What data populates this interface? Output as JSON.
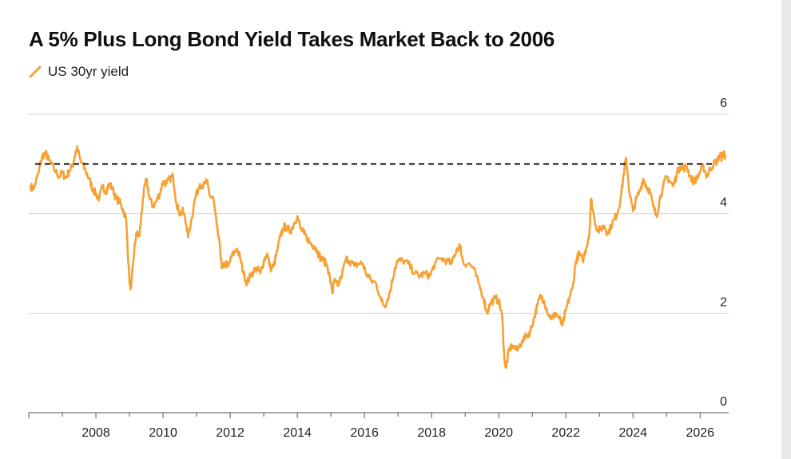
{
  "chart_data": {
    "type": "line",
    "title": "A 5% Plus Long Bond Yield Takes Market Back to 2006",
    "xlabel": "",
    "ylabel": "",
    "xlim": [
      2006.0,
      2026.85
    ],
    "ylim": [
      0,
      6
    ],
    "x_ticks": [
      "2008",
      "2010",
      "2012",
      "2014",
      "2016",
      "2018",
      "2020",
      "2022",
      "2024",
      "2026"
    ],
    "y_ticks": [
      "0",
      "2",
      "4",
      "6"
    ],
    "grid": true,
    "legend_position": "top-left",
    "reference_line": {
      "y": 5.0,
      "style": "dashed",
      "color": "#111111"
    },
    "series": [
      {
        "name": "US 30yr yield",
        "color": "#f7a133",
        "points": [
          [
            2006.05,
            4.55
          ],
          [
            2006.15,
            4.5
          ],
          [
            2006.3,
            4.85
          ],
          [
            2006.4,
            5.15
          ],
          [
            2006.5,
            5.22
          ],
          [
            2006.6,
            5.08
          ],
          [
            2006.75,
            4.9
          ],
          [
            2006.9,
            4.75
          ],
          [
            2007.0,
            4.82
          ],
          [
            2007.1,
            4.72
          ],
          [
            2007.2,
            4.85
          ],
          [
            2007.3,
            4.95
          ],
          [
            2007.4,
            5.25
          ],
          [
            2007.45,
            5.3
          ],
          [
            2007.55,
            5.05
          ],
          [
            2007.7,
            4.85
          ],
          [
            2007.8,
            4.7
          ],
          [
            2007.9,
            4.5
          ],
          [
            2008.0,
            4.4
          ],
          [
            2008.1,
            4.3
          ],
          [
            2008.2,
            4.55
          ],
          [
            2008.3,
            4.45
          ],
          [
            2008.4,
            4.6
          ],
          [
            2008.5,
            4.5
          ],
          [
            2008.6,
            4.3
          ],
          [
            2008.7,
            4.25
          ],
          [
            2008.8,
            4.1
          ],
          [
            2008.9,
            3.9
          ],
          [
            2009.0,
            2.65
          ],
          [
            2009.05,
            2.5
          ],
          [
            2009.12,
            3.1
          ],
          [
            2009.2,
            3.6
          ],
          [
            2009.3,
            3.55
          ],
          [
            2009.4,
            4.3
          ],
          [
            2009.5,
            4.7
          ],
          [
            2009.6,
            4.3
          ],
          [
            2009.7,
            4.15
          ],
          [
            2009.8,
            4.25
          ],
          [
            2009.9,
            4.4
          ],
          [
            2010.0,
            4.65
          ],
          [
            2010.1,
            4.6
          ],
          [
            2010.2,
            4.7
          ],
          [
            2010.3,
            4.75
          ],
          [
            2010.4,
            4.2
          ],
          [
            2010.5,
            4.0
          ],
          [
            2010.6,
            4.05
          ],
          [
            2010.7,
            3.75
          ],
          [
            2010.75,
            3.55
          ],
          [
            2010.85,
            3.9
          ],
          [
            2010.95,
            4.3
          ],
          [
            2011.1,
            4.6
          ],
          [
            2011.2,
            4.55
          ],
          [
            2011.3,
            4.65
          ],
          [
            2011.4,
            4.35
          ],
          [
            2011.5,
            4.3
          ],
          [
            2011.6,
            3.75
          ],
          [
            2011.7,
            3.3
          ],
          [
            2011.75,
            2.9
          ],
          [
            2011.85,
            3.0
          ],
          [
            2011.95,
            2.95
          ],
          [
            2012.05,
            3.15
          ],
          [
            2012.2,
            3.3
          ],
          [
            2012.3,
            3.1
          ],
          [
            2012.4,
            2.8
          ],
          [
            2012.5,
            2.6
          ],
          [
            2012.6,
            2.75
          ],
          [
            2012.7,
            2.85
          ],
          [
            2012.8,
            2.9
          ],
          [
            2012.9,
            2.8
          ],
          [
            2013.0,
            3.05
          ],
          [
            2013.1,
            3.2
          ],
          [
            2013.2,
            2.9
          ],
          [
            2013.3,
            2.95
          ],
          [
            2013.4,
            3.25
          ],
          [
            2013.5,
            3.55
          ],
          [
            2013.6,
            3.75
          ],
          [
            2013.7,
            3.7
          ],
          [
            2013.8,
            3.65
          ],
          [
            2013.9,
            3.8
          ],
          [
            2014.0,
            3.95
          ],
          [
            2014.1,
            3.7
          ],
          [
            2014.2,
            3.6
          ],
          [
            2014.3,
            3.5
          ],
          [
            2014.4,
            3.4
          ],
          [
            2014.5,
            3.35
          ],
          [
            2014.6,
            3.25
          ],
          [
            2014.7,
            3.1
          ],
          [
            2014.8,
            3.05
          ],
          [
            2014.9,
            2.95
          ],
          [
            2015.0,
            2.6
          ],
          [
            2015.05,
            2.4
          ],
          [
            2015.1,
            2.65
          ],
          [
            2015.2,
            2.55
          ],
          [
            2015.3,
            2.7
          ],
          [
            2015.45,
            3.1
          ],
          [
            2015.55,
            3.05
          ],
          [
            2015.7,
            2.95
          ],
          [
            2015.85,
            3.0
          ],
          [
            2015.95,
            3.0
          ],
          [
            2016.05,
            2.8
          ],
          [
            2016.2,
            2.65
          ],
          [
            2016.35,
            2.6
          ],
          [
            2016.5,
            2.25
          ],
          [
            2016.6,
            2.15
          ],
          [
            2016.7,
            2.3
          ],
          [
            2016.8,
            2.55
          ],
          [
            2016.9,
            2.9
          ],
          [
            2017.0,
            3.05
          ],
          [
            2017.2,
            3.05
          ],
          [
            2017.35,
            2.95
          ],
          [
            2017.5,
            2.8
          ],
          [
            2017.65,
            2.75
          ],
          [
            2017.8,
            2.8
          ],
          [
            2017.95,
            2.75
          ],
          [
            2018.1,
            3.0
          ],
          [
            2018.3,
            3.1
          ],
          [
            2018.45,
            3.05
          ],
          [
            2018.6,
            3.0
          ],
          [
            2018.75,
            3.3
          ],
          [
            2018.85,
            3.35
          ],
          [
            2018.95,
            3.0
          ],
          [
            2019.1,
            3.0
          ],
          [
            2019.25,
            2.9
          ],
          [
            2019.4,
            2.6
          ],
          [
            2019.55,
            2.3
          ],
          [
            2019.65,
            2.0
          ],
          [
            2019.75,
            2.2
          ],
          [
            2019.9,
            2.3
          ],
          [
            2020.0,
            2.25
          ],
          [
            2020.1,
            1.95
          ],
          [
            2020.17,
            1.05
          ],
          [
            2020.22,
            0.9
          ],
          [
            2020.3,
            1.25
          ],
          [
            2020.4,
            1.35
          ],
          [
            2020.55,
            1.25
          ],
          [
            2020.7,
            1.45
          ],
          [
            2020.85,
            1.55
          ],
          [
            2020.95,
            1.65
          ],
          [
            2021.05,
            1.9
          ],
          [
            2021.15,
            2.15
          ],
          [
            2021.25,
            2.35
          ],
          [
            2021.35,
            2.25
          ],
          [
            2021.5,
            1.95
          ],
          [
            2021.6,
            1.9
          ],
          [
            2021.7,
            2.0
          ],
          [
            2021.8,
            1.9
          ],
          [
            2021.9,
            1.75
          ],
          [
            2022.0,
            2.05
          ],
          [
            2022.1,
            2.3
          ],
          [
            2022.2,
            2.5
          ],
          [
            2022.3,
            3.05
          ],
          [
            2022.4,
            3.2
          ],
          [
            2022.5,
            3.05
          ],
          [
            2022.6,
            3.3
          ],
          [
            2022.7,
            3.6
          ],
          [
            2022.75,
            4.3
          ],
          [
            2022.85,
            3.9
          ],
          [
            2022.95,
            3.65
          ],
          [
            2023.05,
            3.7
          ],
          [
            2023.15,
            3.75
          ],
          [
            2023.25,
            3.6
          ],
          [
            2023.35,
            3.75
          ],
          [
            2023.45,
            3.9
          ],
          [
            2023.55,
            4.05
          ],
          [
            2023.65,
            4.4
          ],
          [
            2023.75,
            4.95
          ],
          [
            2023.8,
            5.1
          ],
          [
            2023.9,
            4.4
          ],
          [
            2024.0,
            4.05
          ],
          [
            2024.1,
            4.3
          ],
          [
            2024.2,
            4.45
          ],
          [
            2024.3,
            4.7
          ],
          [
            2024.4,
            4.55
          ],
          [
            2024.5,
            4.45
          ],
          [
            2024.6,
            4.15
          ],
          [
            2024.7,
            3.95
          ],
          [
            2024.8,
            4.3
          ],
          [
            2024.9,
            4.55
          ],
          [
            2025.0,
            4.75
          ],
          [
            2025.1,
            4.65
          ],
          [
            2025.2,
            4.55
          ],
          [
            2025.3,
            4.8
          ],
          [
            2025.4,
            4.95
          ],
          [
            2025.5,
            4.9
          ],
          [
            2025.6,
            4.95
          ],
          [
            2025.7,
            4.75
          ],
          [
            2025.8,
            4.65
          ],
          [
            2025.9,
            4.7
          ],
          [
            2026.0,
            4.85
          ],
          [
            2026.1,
            4.95
          ],
          [
            2026.2,
            4.75
          ],
          [
            2026.3,
            4.9
          ],
          [
            2026.4,
            5.0
          ],
          [
            2026.5,
            5.05
          ],
          [
            2026.6,
            5.2
          ],
          [
            2026.65,
            5.1
          ],
          [
            2026.7,
            5.25
          ],
          [
            2026.75,
            5.15
          ]
        ]
      }
    ]
  }
}
